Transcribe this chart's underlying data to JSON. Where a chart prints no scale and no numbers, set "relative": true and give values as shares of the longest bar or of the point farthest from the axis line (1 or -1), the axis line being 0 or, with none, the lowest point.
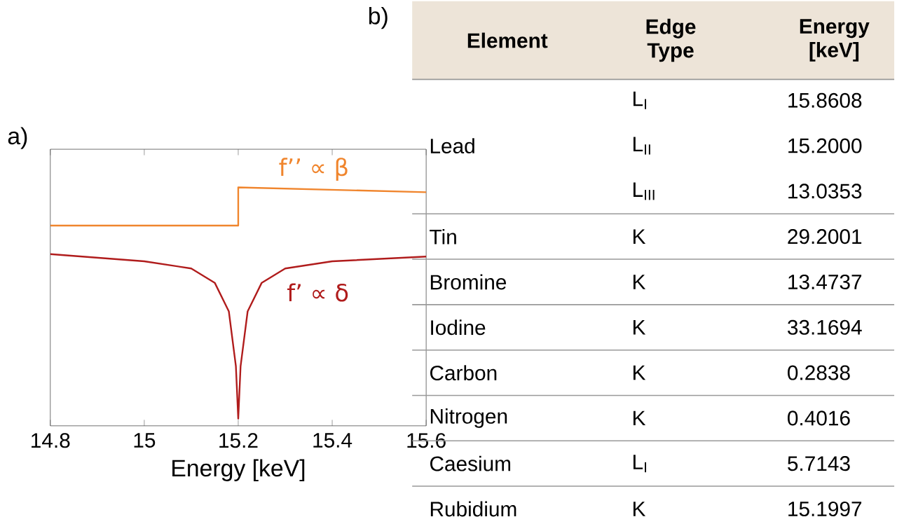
{
  "chart_data": [
    {
      "type": "line",
      "relative": true,
      "xlabel": "Energy [keV]",
      "xlim": [
        14.8,
        15.6
      ],
      "xticks": [
        14.8,
        15,
        15.2,
        15.4,
        15.6
      ],
      "annotations": [
        "a)"
      ],
      "series": [
        {
          "name": "f’’ ∝ β",
          "color": "#f0852d",
          "x": [
            14.8,
            15.2,
            15.2,
            15.6
          ],
          "values": [
            0.84,
            0.84,
            1.0,
            0.98
          ]
        },
        {
          "name": "f’ ∝ δ",
          "color": "#b01c1c",
          "x": [
            14.8,
            15.0,
            15.1,
            15.15,
            15.18,
            15.195,
            15.2,
            15.205,
            15.22,
            15.25,
            15.3,
            15.4,
            15.6
          ],
          "values": [
            0.72,
            0.69,
            0.66,
            0.6,
            0.48,
            0.25,
            0.03,
            0.25,
            0.48,
            0.6,
            0.66,
            0.69,
            0.71
          ]
        }
      ]
    },
    {
      "type": "other",
      "annotations": [
        "b)"
      ],
      "categories": [
        "Element",
        "Edge Type",
        "Energy [keV]"
      ],
      "cell_labels": [
        [
          "Lead",
          "L$_{I}$",
          "15.8608"
        ],
        [
          null,
          "L$_{II}$",
          "15.2000"
        ],
        [
          null,
          "L$_{III}$",
          "13.0353"
        ],
        [
          "Tin",
          "K",
          "29.2001"
        ],
        [
          "Bromine",
          "K",
          "13.4737"
        ],
        [
          "Iodine",
          "K",
          "33.1694"
        ],
        [
          "Carbon",
          "K",
          "0.2838"
        ],
        [
          "Nitrogen",
          "K",
          "0.4016"
        ],
        [
          "Caesium",
          "L$_{I}$",
          "5.7143"
        ],
        [
          "Rubidium",
          "K",
          "15.1997"
        ]
      ]
    }
  ]
}
